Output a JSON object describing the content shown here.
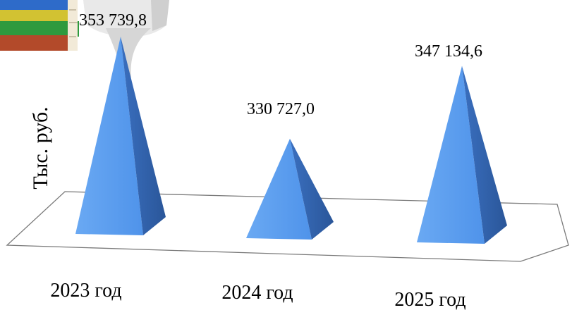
{
  "chart_data": {
    "type": "bar",
    "bar_shape": "pyramid-3d",
    "categories": [
      "2023 год",
      "2024 год",
      "2025 год"
    ],
    "values": [
      353739.8,
      330727.0,
      347134.6
    ],
    "data_labels": [
      "353 739,8",
      "330 727,0",
      "347 134,6"
    ],
    "title": "",
    "xlabel": "",
    "ylabel": "Тыс. руб.",
    "ylim": [
      315000,
      355000
    ],
    "grid": false,
    "legend": "none",
    "colors": {
      "face_light": "#5b9ef0",
      "face_dark": "#2f5fa8",
      "floor_stroke": "#7a7a7a"
    }
  },
  "decoration": {
    "books_icon": "stack-of-books-icon",
    "figure_icon": "white-3d-figure-icon"
  }
}
